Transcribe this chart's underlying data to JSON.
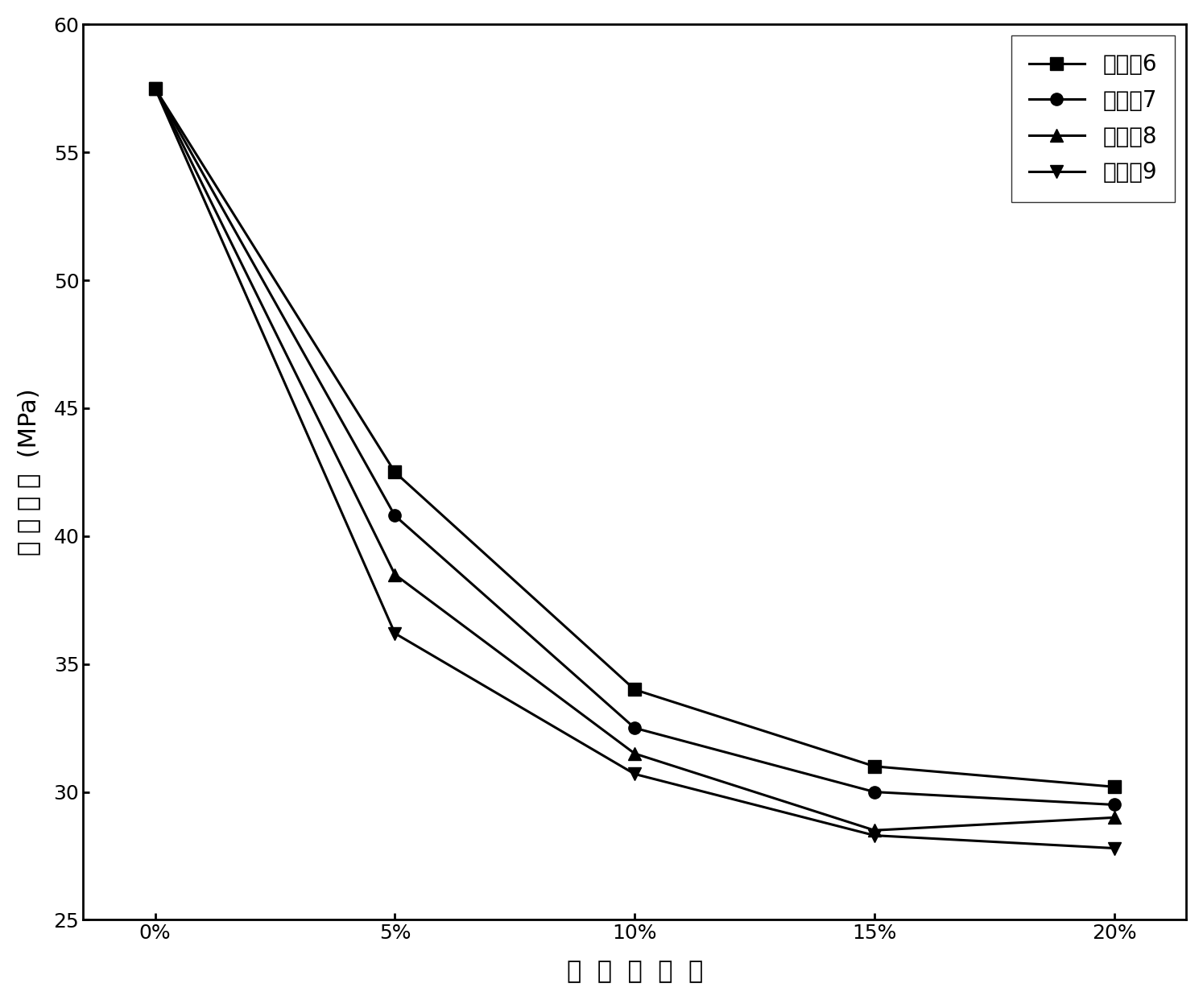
{
  "x_labels": [
    "0%",
    "5%",
    "10%",
    "15%",
    "20%"
  ],
  "x_values": [
    0,
    1,
    2,
    3,
    4
  ],
  "series": [
    {
      "label": "实施兤6",
      "marker": "s",
      "values": [
        57.5,
        42.5,
        34.0,
        31.0,
        30.2
      ]
    },
    {
      "label": "实施兤7",
      "marker": "o",
      "values": [
        57.5,
        40.8,
        32.5,
        30.0,
        29.5
      ]
    },
    {
      "label": "实施兤8",
      "marker": "^",
      "values": [
        57.5,
        38.5,
        31.5,
        28.5,
        29.0
      ]
    },
    {
      "label": "实施兤9",
      "marker": "v",
      "values": [
        57.5,
        36.2,
        30.7,
        28.3,
        27.8
      ]
    }
  ],
  "ylabel_chars": [
    "拉",
    " ",
    "伸",
    " ",
    "强",
    " ",
    "度",
    "  (MPa)"
  ],
  "xlabel": "微  胶  囊  含  量",
  "ylim": [
    25,
    60
  ],
  "yticks": [
    25,
    30,
    35,
    40,
    45,
    50,
    55,
    60
  ],
  "line_color": "#000000",
  "marker_color": "#000000",
  "marker_size": 11,
  "linewidth": 2.2,
  "legend_fontsize": 20,
  "axis_fontsize": 22,
  "tick_fontsize": 18,
  "background_color": "#ffffff"
}
